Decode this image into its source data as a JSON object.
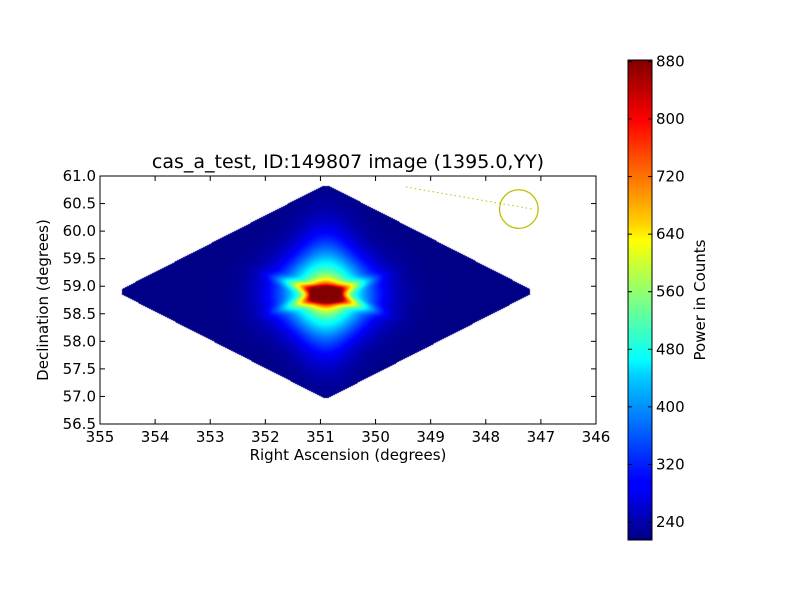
{
  "chart_data": {
    "type": "heatmap",
    "title": "cas_a_test, ID:149807 image (1395.0,YY)",
    "xlabel": "Right Ascension (degrees)",
    "ylabel": "Declination (degrees)",
    "xlim": [
      355,
      346
    ],
    "ylim": [
      56.5,
      61.0
    ],
    "x_ticks": [
      355,
      354,
      353,
      352,
      351,
      350,
      349,
      348,
      347,
      346
    ],
    "x_tick_labels": [
      "355",
      "354",
      "353",
      "352",
      "351",
      "350",
      "349",
      "348",
      "347",
      "346"
    ],
    "y_ticks": [
      56.5,
      57.0,
      57.5,
      58.0,
      58.5,
      59.0,
      59.5,
      60.0,
      60.5,
      61.0
    ],
    "y_tick_labels": [
      "56.5",
      "57.0",
      "57.5",
      "58.0",
      "58.5",
      "59.0",
      "59.5",
      "60.0",
      "60.5",
      "61.0"
    ],
    "colorbar": {
      "label": "Power in Counts",
      "range": [
        215,
        882
      ],
      "ticks": [
        240,
        320,
        400,
        480,
        560,
        640,
        720,
        800,
        880
      ],
      "tick_labels": [
        "240",
        "320",
        "400",
        "480",
        "560",
        "640",
        "720",
        "800",
        "880"
      ],
      "colormap": "jet"
    },
    "field_of_view": {
      "shape": "diamond",
      "left": [
        354.7,
        58.9
      ],
      "right": [
        347.1,
        58.9
      ],
      "top": [
        350.9,
        60.85
      ],
      "bottom": [
        350.9,
        56.85
      ]
    },
    "background_power": 220,
    "peak": {
      "ra": 350.9,
      "dec": 58.85,
      "power": 880
    },
    "source_marker": {
      "ra": 347.4,
      "dec": 60.4,
      "radius_deg": 0.35,
      "color": "#bfbf00"
    },
    "marker_line": {
      "from": [
        349.45,
        60.8
      ],
      "to": [
        347.15,
        60.4
      ],
      "color": "#bfbf00"
    }
  }
}
